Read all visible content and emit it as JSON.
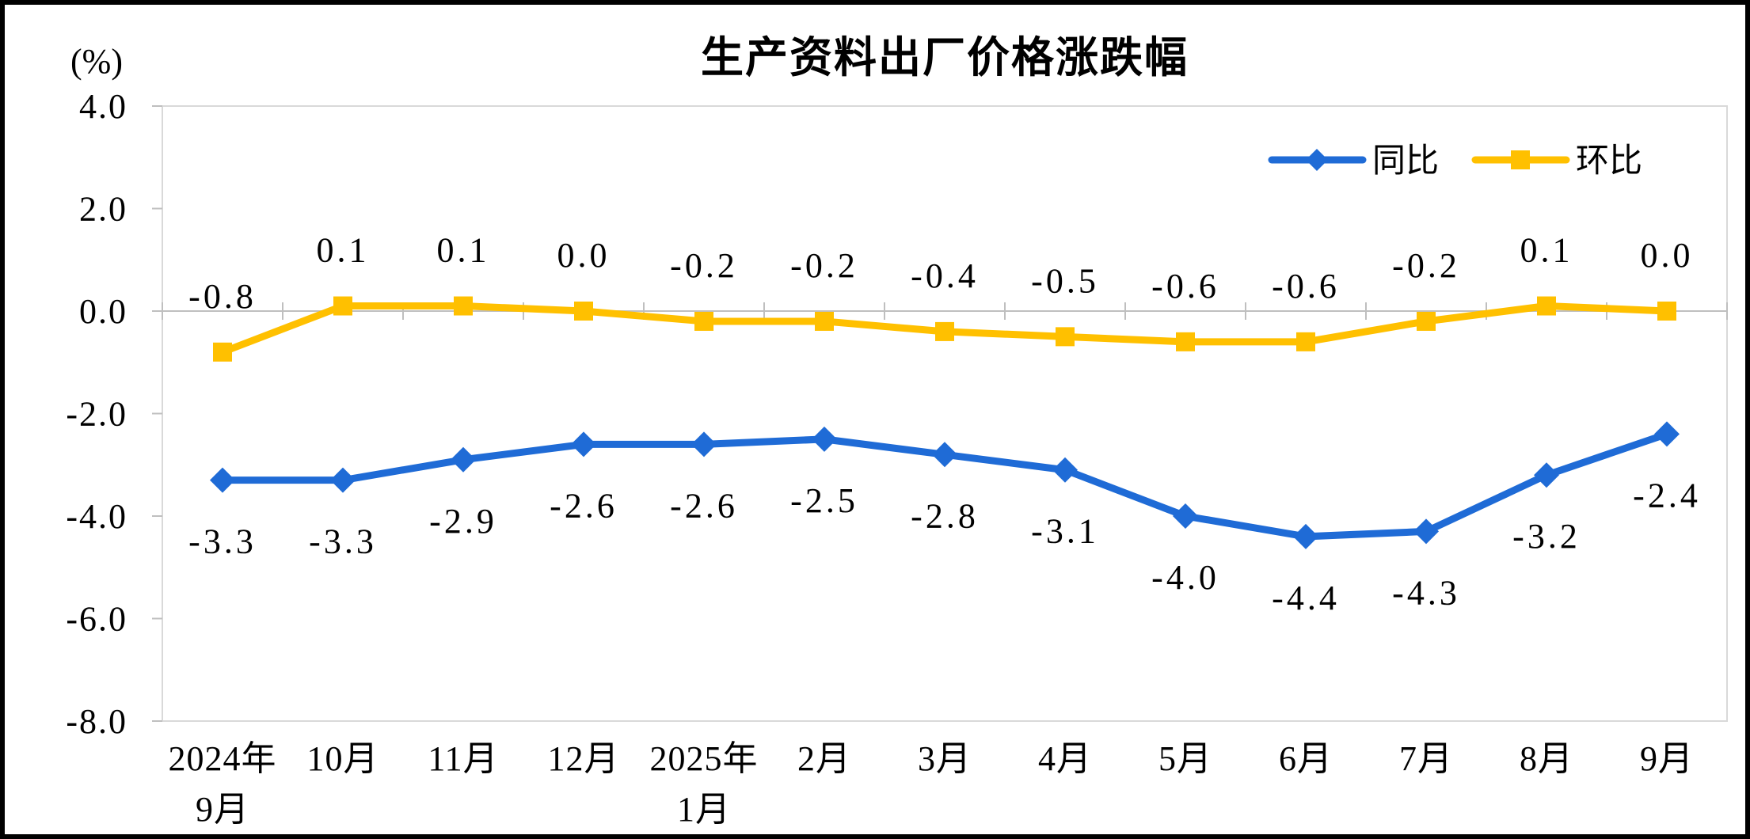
{
  "header": {
    "title": "生产资料出厂价格涨跌幅"
  },
  "chart_data": {
    "type": "line",
    "title": "生产资料出厂价格涨跌幅",
    "ylabel_unit": "(%)",
    "ylim": [
      -8.0,
      4.0
    ],
    "ytick_labels": [
      "4.0",
      "2.0",
      "0.0",
      "-2.0",
      "-4.0",
      "-6.0",
      "-8.0"
    ],
    "grid": false,
    "legend_position": "top-right-inside",
    "axis_color": "#BFBFBF",
    "border_color": "#D9D9D9",
    "text_color": "#000000",
    "categories": [
      "2024年\n9月",
      "10月",
      "11月",
      "12月",
      "2025年\n1月",
      "2月",
      "3月",
      "4月",
      "5月",
      "6月",
      "7月",
      "8月",
      "9月"
    ],
    "series": [
      {
        "name": "同比",
        "color": "#1F6BD6",
        "marker": "diamond",
        "label_position": "below",
        "values": [
          -3.3,
          -3.3,
          -2.9,
          -2.6,
          -2.6,
          -2.5,
          -2.8,
          -3.1,
          -4.0,
          -4.4,
          -4.3,
          -3.2,
          -2.4
        ],
        "labels": [
          "-3.3",
          "-3.3",
          "-2.9",
          "-2.6",
          "-2.6",
          "-2.5",
          "-2.8",
          "-3.1",
          "-4.0",
          "-4.4",
          "-4.3",
          "-3.2",
          "-2.4"
        ]
      },
      {
        "name": "环比",
        "color": "#FFC000",
        "marker": "square",
        "label_position": "above",
        "values": [
          -0.8,
          0.1,
          0.1,
          0.0,
          -0.2,
          -0.2,
          -0.4,
          -0.5,
          -0.6,
          -0.6,
          -0.2,
          0.1,
          0.0
        ],
        "labels": [
          "-0.8",
          "0.1",
          "0.1",
          "0.0",
          "-0.2",
          "-0.2",
          "-0.4",
          "-0.5",
          "-0.6",
          "-0.6",
          "-0.2",
          "0.1",
          "0.0"
        ]
      }
    ]
  }
}
